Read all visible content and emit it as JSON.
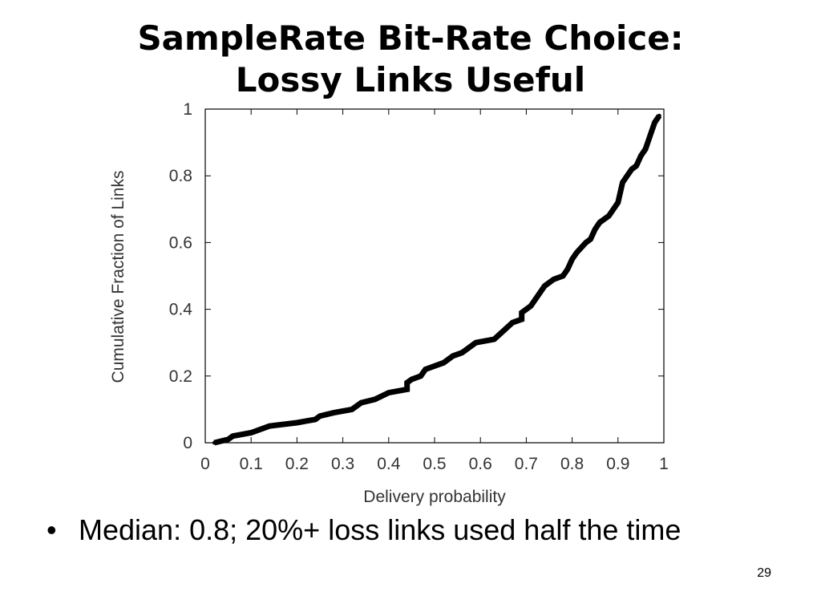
{
  "slide": {
    "title_line1": "SampleRate Bit-Rate Choice:",
    "title_line2": "Lossy Links Useful",
    "bullet": "Median: 0.8; 20%+ loss links used half the time",
    "bullet_marker": "•",
    "page_number": "29"
  },
  "chart_data": {
    "type": "line",
    "title": "",
    "xlabel": "Delivery probability",
    "ylabel": "Cumulative Fraction of Links",
    "xlim": [
      0,
      1
    ],
    "ylim": [
      0,
      1
    ],
    "xticks": [
      "0",
      "0.1",
      "0.2",
      "0.3",
      "0.4",
      "0.5",
      "0.6",
      "0.7",
      "0.8",
      "0.9",
      "1"
    ],
    "xtick_values": [
      0,
      0.1,
      0.2,
      0.3,
      0.4,
      0.5,
      0.6,
      0.7,
      0.8,
      0.9,
      1
    ],
    "yticks": [
      "0",
      "0.2",
      "0.4",
      "0.6",
      "0.8",
      "1"
    ],
    "ytick_values": [
      0,
      0.2,
      0.4,
      0.6,
      0.8,
      1
    ],
    "grid": false,
    "legend": "none",
    "series": [
      {
        "color": "#000000",
        "x": [
          0.02,
          0.05,
          0.06,
          0.1,
          0.14,
          0.2,
          0.24,
          0.25,
          0.28,
          0.32,
          0.34,
          0.37,
          0.4,
          0.44,
          0.44,
          0.45,
          0.47,
          0.48,
          0.52,
          0.54,
          0.56,
          0.59,
          0.63,
          0.67,
          0.69,
          0.69,
          0.71,
          0.72,
          0.73,
          0.74,
          0.76,
          0.78,
          0.79,
          0.8,
          0.81,
          0.83,
          0.84,
          0.85,
          0.86,
          0.88,
          0.89,
          0.9,
          0.91,
          0.92,
          0.93,
          0.94,
          0.95,
          0.96,
          0.97,
          0.98,
          0.99
        ],
        "y": [
          0.0,
          0.01,
          0.02,
          0.03,
          0.05,
          0.06,
          0.07,
          0.08,
          0.09,
          0.1,
          0.12,
          0.13,
          0.15,
          0.16,
          0.18,
          0.19,
          0.2,
          0.22,
          0.24,
          0.26,
          0.27,
          0.3,
          0.31,
          0.36,
          0.37,
          0.39,
          0.41,
          0.43,
          0.45,
          0.47,
          0.49,
          0.5,
          0.52,
          0.55,
          0.57,
          0.6,
          0.61,
          0.64,
          0.66,
          0.68,
          0.7,
          0.72,
          0.78,
          0.8,
          0.82,
          0.83,
          0.86,
          0.88,
          0.92,
          0.96,
          0.98
        ]
      }
    ]
  }
}
